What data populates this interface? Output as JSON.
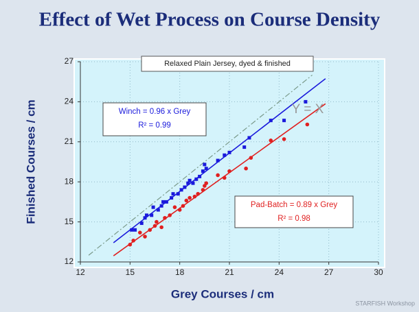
{
  "chart_data": {
    "type": "scatter",
    "title": "Effect of Wet Process on Course Density",
    "subtitle": "Relaxed Plain Jersey, dyed & finished",
    "x_label": "Grey Courses / cm",
    "y_label": "Finished Courses / cm",
    "xlim": [
      12,
      30
    ],
    "xticks": [
      12,
      15,
      18,
      21,
      24,
      27,
      30
    ],
    "ylim": [
      12,
      27
    ],
    "yticks": [
      12,
      15,
      18,
      21,
      24,
      27
    ],
    "grid": true,
    "series": [
      {
        "color": "#1a1adc",
        "marker": "square",
        "x": [
          15.1,
          15.3,
          15.7,
          15.9,
          16.0,
          16.3,
          16.4,
          16.7,
          16.9,
          17.0,
          17.2,
          17.5,
          17.6,
          17.9,
          18.1,
          18.3,
          18.5,
          18.6,
          18.8,
          19.0,
          19.2,
          19.4,
          19.5,
          19.6,
          20.3,
          20.7,
          21.0,
          21.9,
          22.2,
          23.5,
          24.3,
          25.6
        ],
        "values": [
          14.4,
          14.4,
          14.9,
          15.3,
          15.5,
          15.5,
          16.1,
          15.9,
          16.2,
          16.5,
          16.5,
          16.8,
          17.1,
          17.1,
          17.4,
          17.6,
          17.9,
          18.1,
          17.9,
          18.2,
          18.4,
          18.8,
          19.3,
          19.0,
          19.6,
          20.0,
          20.2,
          20.6,
          21.3,
          22.6,
          22.6,
          24.0
        ]
      },
      {
        "color": "#e02020",
        "marker": "circle",
        "x": [
          15.0,
          15.2,
          15.6,
          15.9,
          16.2,
          16.5,
          16.6,
          16.9,
          17.1,
          17.4,
          17.7,
          18.0,
          18.2,
          18.4,
          18.6,
          18.9,
          19.1,
          19.4,
          19.5,
          19.6,
          20.3,
          20.7,
          21.0,
          22.0,
          22.3,
          23.5,
          24.3,
          25.7
        ],
        "values": [
          13.3,
          13.6,
          14.2,
          13.9,
          14.4,
          14.7,
          15.0,
          14.6,
          15.3,
          15.5,
          16.1,
          15.9,
          16.2,
          16.6,
          16.8,
          16.9,
          17.1,
          17.4,
          17.7,
          17.9,
          18.5,
          18.3,
          18.8,
          19.0,
          19.8,
          21.1,
          21.2,
          22.3
        ]
      }
    ],
    "fit_lines": [
      {
        "color": "#1a1adc",
        "x": [
          14,
          26.8
        ],
        "values": [
          13.44,
          25.73
        ]
      },
      {
        "color": "#e02020",
        "x": [
          14,
          26.8
        ],
        "values": [
          12.46,
          23.85
        ]
      },
      {
        "color": "#7a9a8a",
        "dashed": true,
        "x": [
          12.5,
          26
        ],
        "values": [
          12.5,
          26
        ]
      }
    ],
    "annotations": [
      {
        "lines": [
          "Winch = 0.96 x Grey",
          "R² = 0.99"
        ],
        "color": "#1a1adc"
      },
      {
        "lines": [
          "Pad-Batch = 0.89 x Grey",
          "R² = 0.98"
        ],
        "color": "#e02020"
      },
      {
        "lines": [
          "Y = X"
        ],
        "color": "#999999"
      }
    ],
    "footer": "STARFISH Workshop"
  }
}
